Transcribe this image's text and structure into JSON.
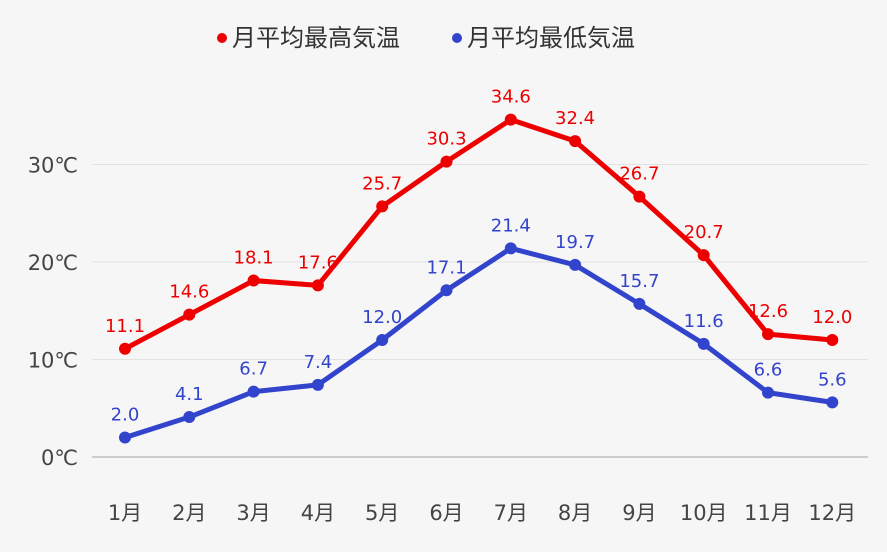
{
  "chart_data": {
    "type": "line",
    "categories": [
      "1月",
      "2月",
      "3月",
      "4月",
      "5月",
      "6月",
      "7月",
      "8月",
      "9月",
      "10月",
      "11月",
      "12月"
    ],
    "series": [
      {
        "name": "月平均最高気温",
        "color": "#ee0000",
        "values": [
          11.1,
          14.6,
          18.1,
          17.6,
          25.7,
          30.3,
          34.6,
          32.4,
          26.7,
          20.7,
          12.6,
          12.0
        ],
        "labels": [
          "11.1",
          "14.6",
          "18.1",
          "17.6",
          "25.7",
          "30.3",
          "34.6",
          "32.4",
          "26.7",
          "20.7",
          "12.6",
          "12.0"
        ]
      },
      {
        "name": "月平均最低気温",
        "color": "#3344cc",
        "values": [
          2.0,
          4.1,
          6.7,
          7.4,
          12.0,
          17.1,
          21.4,
          19.7,
          15.7,
          11.6,
          6.6,
          5.6
        ],
        "labels": [
          "2.0",
          "4.1",
          "6.7",
          "7.4",
          "12.0",
          "17.1",
          "21.4",
          "19.7",
          "15.7",
          "11.6",
          "6.6",
          "5.6"
        ]
      }
    ],
    "yticks": [
      0,
      10,
      20,
      30
    ],
    "ytick_labels": [
      "0℃",
      "10℃",
      "20℃",
      "30℃"
    ],
    "ylim": [
      0,
      35
    ],
    "grid": true,
    "legend_position": "top-center"
  }
}
